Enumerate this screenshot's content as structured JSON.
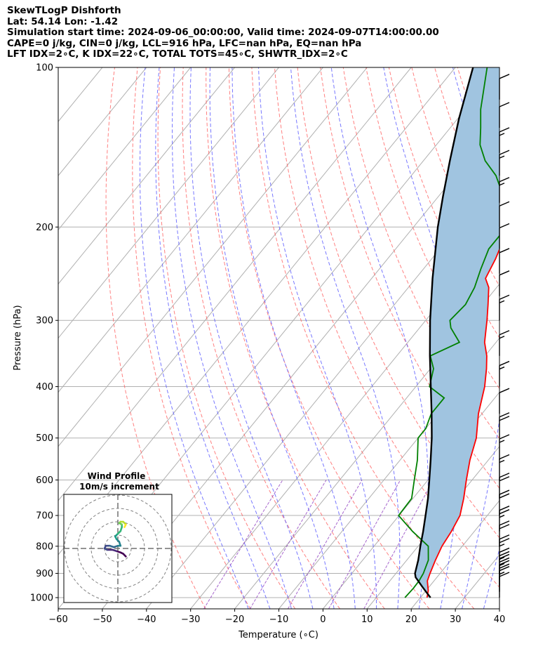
{
  "header": {
    "line1": "SkewTLogP Dishforth",
    "line2": "Lat: 54.14   Lon: -1.42",
    "line3": "Simulation start time: 2024-09-06_00:00:00, Valid time: 2024-09-07T14:00:00.00",
    "line4": "CAPE=0 j/kg, CIN=0 j/kg, LCL=916 hPa, LFC=nan hPa, EQ=nan hPa",
    "line5": "LFT IDX=2∘C, K IDX=22∘C, TOTAL TOTS=45∘C, SHWTR_IDX=2∘C"
  },
  "chart_data": {
    "type": "skewt-logp",
    "xlabel": "Temperature (∘C)",
    "ylabel": "Pressure (hPa)",
    "xlim": [
      -60,
      40
    ],
    "ylim": [
      1050,
      100
    ],
    "x_ticks": [
      -60,
      -50,
      -40,
      -30,
      -20,
      -10,
      0,
      10,
      20,
      30,
      40
    ],
    "x_tick_labels": [
      "−60",
      "−50",
      "−40",
      "−30",
      "−20",
      "−10",
      "0",
      "10",
      "20",
      "30",
      "40"
    ],
    "p_ticks": [
      1000,
      900,
      800,
      700,
      600,
      500,
      400,
      300,
      200,
      100
    ],
    "p_tick_labels": [
      "1000",
      "900",
      "800",
      "700",
      "600",
      "500",
      "400",
      "300",
      "200",
      "100"
    ],
    "grid": true,
    "colors": {
      "temperature": "#ff0000",
      "dewpoint": "#008000",
      "parcel": "#000000",
      "cape_fill": "#a0c4e0",
      "dry_adiabats": "#ff6060",
      "moist_adiabats": "#6060ff",
      "mixing_ratio": "#9040c0",
      "isotherms": "#b0b0b0"
    },
    "series": [
      {
        "kind": "temperature",
        "points": [
          [
            1000,
            21.5
          ],
          [
            970,
            20.5
          ],
          [
            930,
            18.5
          ],
          [
            900,
            17.7
          ],
          [
            850,
            16.5
          ],
          [
            800,
            15.4
          ],
          [
            750,
            14.8
          ],
          [
            700,
            13.8
          ],
          [
            650,
            11.5
          ],
          [
            600,
            8.7
          ],
          [
            550,
            5.8
          ],
          [
            500,
            3.2
          ],
          [
            450,
            -0.8
          ],
          [
            400,
            -4.4
          ],
          [
            370,
            -7.3
          ],
          [
            350,
            -9.6
          ],
          [
            330,
            -12.6
          ],
          [
            300,
            -16.1
          ],
          [
            280,
            -18.8
          ],
          [
            260,
            -21.8
          ],
          [
            250,
            -24.2
          ],
          [
            230,
            -25.5
          ],
          [
            215,
            -26.9
          ],
          [
            200,
            -28.5
          ],
          [
            190,
            -28.8
          ],
          [
            180,
            -29.0
          ],
          [
            170,
            -29.7
          ],
          [
            160,
            -31.5
          ],
          [
            150,
            -33.6
          ],
          [
            140,
            -36.2
          ],
          [
            130,
            -38.1
          ],
          [
            120,
            -40.0
          ],
          [
            110,
            -42.4
          ],
          [
            100,
            -44.0
          ]
        ]
      },
      {
        "kind": "dewpoint",
        "points": [
          [
            1000,
            16.5
          ],
          [
            960,
            16.7
          ],
          [
            930,
            16.6
          ],
          [
            900,
            16.2
          ],
          [
            850,
            14.9
          ],
          [
            800,
            12.3
          ],
          [
            750,
            6.0
          ],
          [
            700,
            -0.1
          ],
          [
            650,
            -0.3
          ],
          [
            600,
            -3.1
          ],
          [
            550,
            -6.1
          ],
          [
            500,
            -10.0
          ],
          [
            480,
            -10.0
          ],
          [
            450,
            -11.5
          ],
          [
            420,
            -11.5
          ],
          [
            400,
            -16.9
          ],
          [
            370,
            -19.3
          ],
          [
            350,
            -22.4
          ],
          [
            330,
            -18.3
          ],
          [
            310,
            -22.9
          ],
          [
            300,
            -24.5
          ],
          [
            280,
            -23.9
          ],
          [
            260,
            -25.0
          ],
          [
            240,
            -27.0
          ],
          [
            220,
            -28.9
          ],
          [
            200,
            -28.9
          ],
          [
            180,
            -33.6
          ],
          [
            160,
            -40.8
          ],
          [
            150,
            -46.0
          ],
          [
            140,
            -50.1
          ],
          [
            130,
            -53.1
          ],
          [
            120,
            -56.5
          ],
          [
            110,
            -59.5
          ],
          [
            100,
            -62.8
          ]
        ]
      },
      {
        "kind": "parcel",
        "points": [
          [
            1000,
            22.3
          ],
          [
            975,
            20.2
          ],
          [
            950,
            18.1
          ],
          [
            925,
            16.0
          ],
          [
            916,
            15.2
          ],
          [
            900,
            14.3
          ],
          [
            850,
            12.6
          ],
          [
            800,
            10.5
          ],
          [
            750,
            8.4
          ],
          [
            700,
            6.0
          ],
          [
            650,
            3.4
          ],
          [
            600,
            0.3
          ],
          [
            550,
            -3.1
          ],
          [
            500,
            -6.9
          ],
          [
            450,
            -11.4
          ],
          [
            400,
            -16.6
          ],
          [
            350,
            -22.5
          ],
          [
            300,
            -29.0
          ],
          [
            250,
            -36.2
          ],
          [
            200,
            -44.5
          ],
          [
            175,
            -49.0
          ],
          [
            150,
            -54.0
          ],
          [
            125,
            -59.7
          ],
          [
            100,
            -66.0
          ]
        ]
      }
    ],
    "wind_barbs": [
      {
        "p": 1000,
        "speed_kt": 10
      },
      {
        "p": 975,
        "speed_kt": 15
      },
      {
        "p": 950,
        "speed_kt": 20
      },
      {
        "p": 925,
        "speed_kt": 25
      },
      {
        "p": 900,
        "speed_kt": 25
      },
      {
        "p": 850,
        "speed_kt": 25
      },
      {
        "p": 800,
        "speed_kt": 20
      },
      {
        "p": 750,
        "speed_kt": 25
      },
      {
        "p": 700,
        "speed_kt": 20
      },
      {
        "p": 650,
        "speed_kt": 20
      },
      {
        "p": 600,
        "speed_kt": 15
      },
      {
        "p": 550,
        "speed_kt": 15
      },
      {
        "p": 500,
        "speed_kt": 20
      },
      {
        "p": 450,
        "speed_kt": 10
      },
      {
        "p": 400,
        "speed_kt": 15
      },
      {
        "p": 350,
        "speed_kt": 15
      },
      {
        "p": 300,
        "speed_kt": 15
      },
      {
        "p": 270,
        "speed_kt": 10
      },
      {
        "p": 245,
        "speed_kt": 10
      },
      {
        "p": 220,
        "speed_kt": 10
      },
      {
        "p": 200,
        "speed_kt": 10
      },
      {
        "p": 180,
        "speed_kt": 15
      },
      {
        "p": 160,
        "speed_kt": 15
      },
      {
        "p": 145,
        "speed_kt": 15
      },
      {
        "p": 130,
        "speed_kt": 10
      },
      {
        "p": 115,
        "speed_kt": 10
      }
    ],
    "hodograph": {
      "title": "Wind Profile",
      "subtitle": "10m/s increment",
      "rings_ms": [
        10,
        20,
        30,
        40
      ],
      "uv_ms": [
        [
          6,
          -6
        ],
        [
          4,
          -4
        ],
        [
          2,
          -3
        ],
        [
          -1,
          -2
        ],
        [
          -4,
          -1
        ],
        [
          -8,
          -1
        ],
        [
          -10,
          0
        ],
        [
          -9,
          2
        ],
        [
          -6,
          2
        ],
        [
          -3,
          1
        ],
        [
          0,
          2
        ],
        [
          2,
          2
        ],
        [
          1,
          5
        ],
        [
          -1,
          7
        ],
        [
          -2,
          9
        ],
        [
          0,
          11
        ],
        [
          2,
          13
        ],
        [
          3,
          16
        ],
        [
          3,
          18
        ],
        [
          1,
          19
        ],
        [
          2,
          20
        ],
        [
          4,
          20
        ],
        [
          6,
          18
        ],
        [
          5,
          16
        ]
      ]
    }
  }
}
